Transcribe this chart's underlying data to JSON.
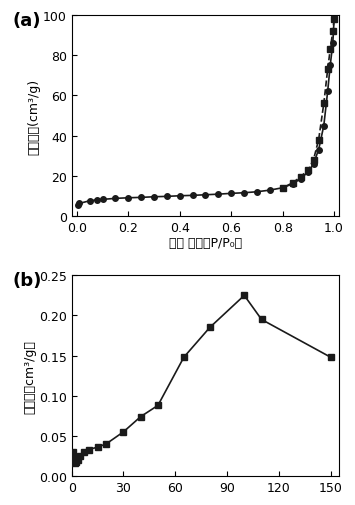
{
  "plot_a": {
    "label": "(a)",
    "xlabel": "相对 压力（P/P₀）",
    "ylabel": "吸附体积(cm³/g)",
    "xlim": [
      -0.02,
      1.02
    ],
    "ylim": [
      0,
      100
    ],
    "yticks": [
      0,
      20,
      40,
      60,
      80,
      100
    ],
    "xticks": [
      0.0,
      0.2,
      0.4,
      0.6,
      0.8,
      1.0
    ],
    "adsorption_x": [
      0.005,
      0.01,
      0.05,
      0.08,
      0.1,
      0.15,
      0.2,
      0.25,
      0.3,
      0.35,
      0.4,
      0.45,
      0.5,
      0.55,
      0.6,
      0.65,
      0.7,
      0.75,
      0.8,
      0.84,
      0.87,
      0.9,
      0.92,
      0.94,
      0.96,
      0.975,
      0.985,
      0.995,
      1.0
    ],
    "adsorption_y": [
      5.5,
      6.2,
      7.5,
      8.0,
      8.2,
      8.7,
      9.0,
      9.2,
      9.5,
      9.7,
      10.0,
      10.2,
      10.5,
      10.8,
      11.2,
      11.5,
      12.0,
      12.8,
      14.0,
      16.0,
      18.5,
      22.0,
      26.0,
      33.0,
      45.0,
      62.0,
      75.0,
      86.0,
      98.0
    ],
    "desorption_x": [
      1.0,
      0.995,
      0.985,
      0.975,
      0.96,
      0.94,
      0.92,
      0.9,
      0.87,
      0.84,
      0.8
    ],
    "desorption_y": [
      98.0,
      92.0,
      83.0,
      73.0,
      56.0,
      38.0,
      28.0,
      23.0,
      19.5,
      16.5,
      14.0
    ],
    "marker_size": 4,
    "line_color": "#1a1a1a",
    "line_width": 1.2
  },
  "plot_b": {
    "label": "(b)",
    "xlabel": "",
    "ylabel": "孔体积（cm³/g）",
    "xlim": [
      0,
      155
    ],
    "ylim": [
      0.0,
      0.25
    ],
    "yticks": [
      0.0,
      0.05,
      0.1,
      0.15,
      0.2,
      0.25
    ],
    "xticks": [
      0,
      30,
      60,
      90,
      120,
      150
    ],
    "x": [
      0.8,
      1.2,
      1.7,
      2.5,
      3.5,
      5.0,
      7.0,
      10.0,
      15.0,
      20.0,
      30.0,
      40.0,
      50.0,
      65.0,
      80.0,
      100.0,
      110.0,
      150.0
    ],
    "y": [
      0.03,
      0.022,
      0.016,
      0.017,
      0.02,
      0.025,
      0.03,
      0.033,
      0.036,
      0.04,
      0.055,
      0.074,
      0.088,
      0.148,
      0.185,
      0.225,
      0.195,
      0.148
    ],
    "marker_size": 4,
    "line_color": "#1a1a1a",
    "line_width": 1.2
  },
  "bg_color": "#ffffff",
  "label_fontsize": 13,
  "tick_fontsize": 9,
  "axis_label_fontsize": 9
}
